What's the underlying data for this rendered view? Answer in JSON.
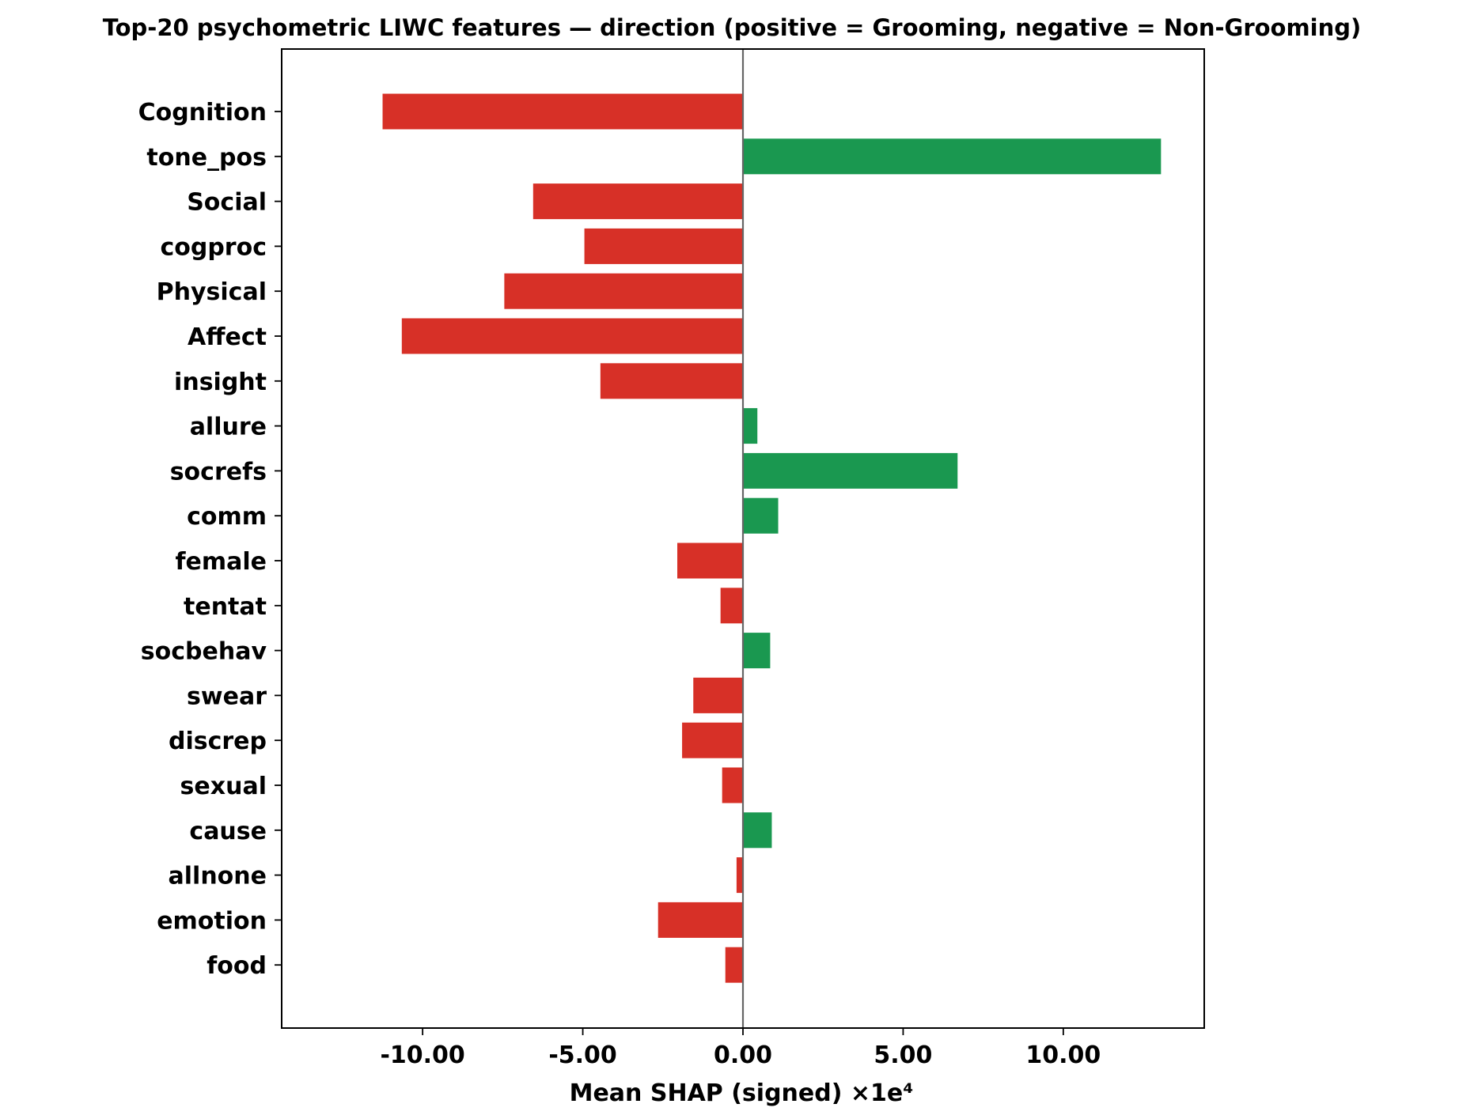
{
  "chart_data": {
    "type": "bar",
    "orientation": "horizontal",
    "title": "Top-20 psychometric LIWC features — direction (positive = Grooming, negative = Non-Grooming)",
    "xlabel": "Mean SHAP (signed) ×1e⁴",
    "ylabel": "",
    "xlim": [
      -14.4,
      14.4
    ],
    "xticks": [
      -10,
      -5,
      0,
      5,
      10
    ],
    "xtick_labels": [
      "-10.00",
      "-5.00",
      "0.00",
      "5.00",
      "10.00"
    ],
    "grid": false,
    "legend": "none",
    "categories": [
      "Cognition",
      "tone_pos",
      "Social",
      "cogproc",
      "Physical",
      "Affect",
      "insight",
      "allure",
      "socrefs",
      "comm",
      "female",
      "tentat",
      "socbehav",
      "swear",
      "discrep",
      "sexual",
      "cause",
      "allnone",
      "emotion",
      "food"
    ],
    "values": [
      -11.25,
      13.05,
      -6.55,
      -4.95,
      -7.45,
      -10.65,
      -4.45,
      0.45,
      6.7,
      1.1,
      -2.05,
      -0.7,
      0.85,
      -1.55,
      -1.9,
      -0.65,
      0.9,
      -0.2,
      -2.65,
      -0.55
    ],
    "colors": {
      "positive": "#1a9850",
      "negative": "#d73027",
      "zero_line": "#666666",
      "frame": "#000000"
    }
  }
}
